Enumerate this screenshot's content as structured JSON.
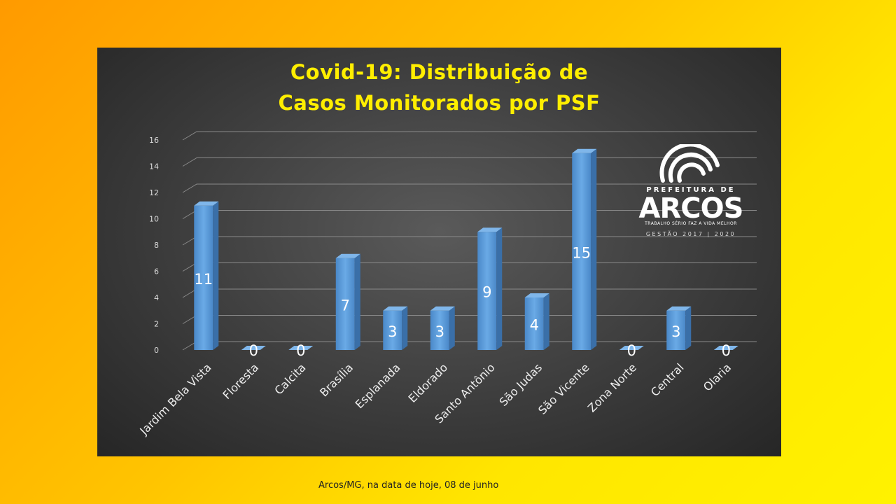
{
  "chart_data": {
    "type": "bar",
    "title_lines": [
      "Covid-19: Distribuição de",
      "Casos Monitorados por PSF"
    ],
    "categories": [
      "Jardim Bela Vista",
      "Floresta",
      "Calcita",
      "Brasília",
      "Esplanada",
      "Eldorado",
      "Santo Antônio",
      "São Judas",
      "São Vicente",
      "Zona Norte",
      "Central",
      "Olaria"
    ],
    "values": [
      11,
      0,
      0,
      7,
      3,
      3,
      9,
      4,
      15,
      0,
      3,
      0
    ],
    "yticks": [
      0,
      2,
      4,
      6,
      8,
      10,
      12,
      14,
      16
    ],
    "ylim": [
      0,
      16
    ],
    "grid": true,
    "bar_color": "#5b9bd5",
    "title_color": "#ffee00"
  },
  "logo": {
    "prefeitura": "PREFEITURA DE",
    "name": "ARCOS",
    "tagline": "TRABALHO SÉRIO FAZ A VIDA MELHOR",
    "gestao": "GESTÃO 2017 | 2020"
  },
  "footer": "Arcos/MG, na data de hoje, 08 de junho"
}
